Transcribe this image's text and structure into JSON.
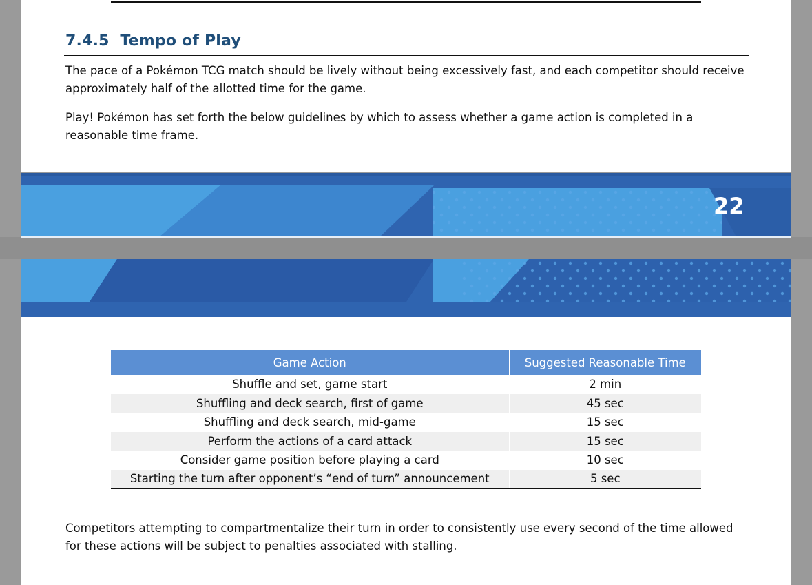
{
  "section": {
    "number": "7.4.5",
    "title": "Tempo of Play"
  },
  "paragraphs": {
    "intro": "The pace of a Pokémon TCG match should be lively without being excessively fast, and each competitor should receive approximately half of the allotted time for the game.",
    "guidelines": "Play! Pokémon has set forth the below guidelines by which to assess whether a game action is completed in a reasonable time frame.",
    "closing": "Competitors attempting to compartmentalize their turn in order to consistently use every second of the time allowed for these actions will be subject to penalties associated with stalling."
  },
  "page_number": "22",
  "table": {
    "headers": [
      "Game Action",
      "Suggested Reasonable Time"
    ],
    "rows": [
      {
        "action": "Shuffle and set, game start",
        "time": "2 min"
      },
      {
        "action": "Shuffling and deck search, first of game",
        "time": "45 sec"
      },
      {
        "action": "Shuffling and deck search, mid-game",
        "time": "15 sec"
      },
      {
        "action": "Perform the actions of a card attack",
        "time": "15 sec"
      },
      {
        "action": "Consider game position before playing a card",
        "time": "10 sec"
      },
      {
        "action": "Starting the turn after opponent’s “end of turn” announcement",
        "time": "5 sec"
      }
    ]
  },
  "colors": {
    "heading": "#1f4e79",
    "banner_dark": "#2f64b0",
    "banner_light": "#4aa0e0",
    "table_header": "#5b8fd3",
    "highlight": "#f7f53c"
  }
}
